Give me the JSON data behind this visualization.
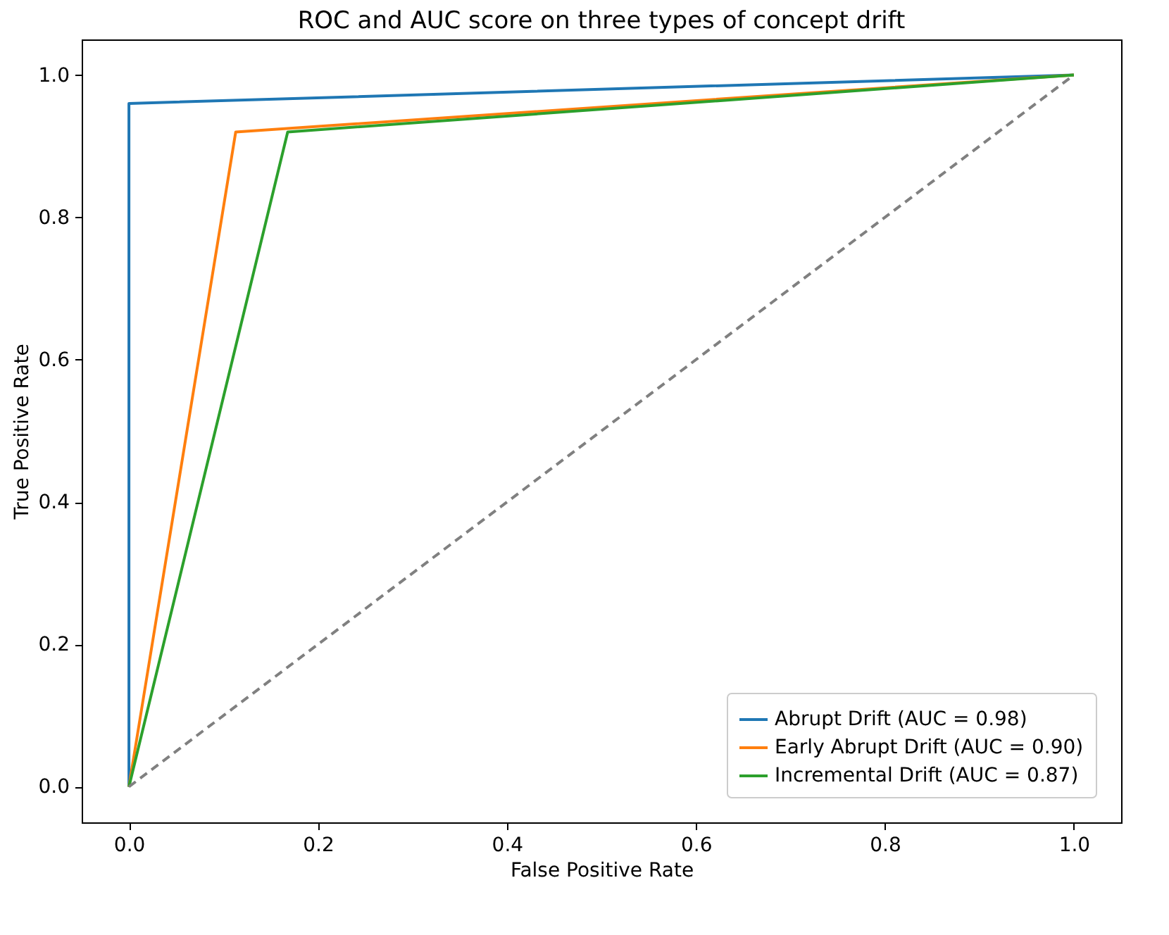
{
  "chart_data": {
    "type": "line",
    "title": "ROC and AUC score on three types of concept drift",
    "xlabel": "False Positive Rate",
    "ylabel": "True Positive Rate",
    "xlim": [
      -0.05,
      1.05
    ],
    "ylim": [
      -0.05,
      1.05
    ],
    "xticks": [
      {
        "value": 0,
        "label": "0.0"
      },
      {
        "value": 0.2,
        "label": "0.2"
      },
      {
        "value": 0.4,
        "label": "0.4"
      },
      {
        "value": 0.6,
        "label": "0.6"
      },
      {
        "value": 0.8,
        "label": "0.8"
      },
      {
        "value": 1,
        "label": "1.0"
      }
    ],
    "yticks": [
      {
        "value": 0,
        "label": "0.0"
      },
      {
        "value": 0.2,
        "label": "0.2"
      },
      {
        "value": 0.4,
        "label": "0.4"
      },
      {
        "value": 0.6,
        "label": "0.6"
      },
      {
        "value": 0.8,
        "label": "0.8"
      },
      {
        "value": 1,
        "label": "1.0"
      }
    ],
    "grid": false,
    "legend": "bottom right",
    "series": [
      {
        "name": "Abrupt Drift (AUC = 0.98)",
        "color": "#1f77b4",
        "x": [
          0,
          0,
          1
        ],
        "values": [
          0,
          0.96,
          1
        ]
      },
      {
        "name": "Early Abrupt Drift (AUC = 0.90)",
        "color": "#ff7f0e",
        "x": [
          0,
          0.113,
          1
        ],
        "values": [
          0,
          0.92,
          1
        ]
      },
      {
        "name": "Incremental Drift (AUC = 0.87)",
        "color": "#2ca02c",
        "x": [
          0,
          0.168,
          1
        ],
        "values": [
          0,
          0.92,
          1
        ]
      },
      {
        "color": "#808080",
        "line_style": "dashed",
        "x": [
          0,
          1
        ],
        "values": [
          0,
          1
        ]
      }
    ]
  }
}
